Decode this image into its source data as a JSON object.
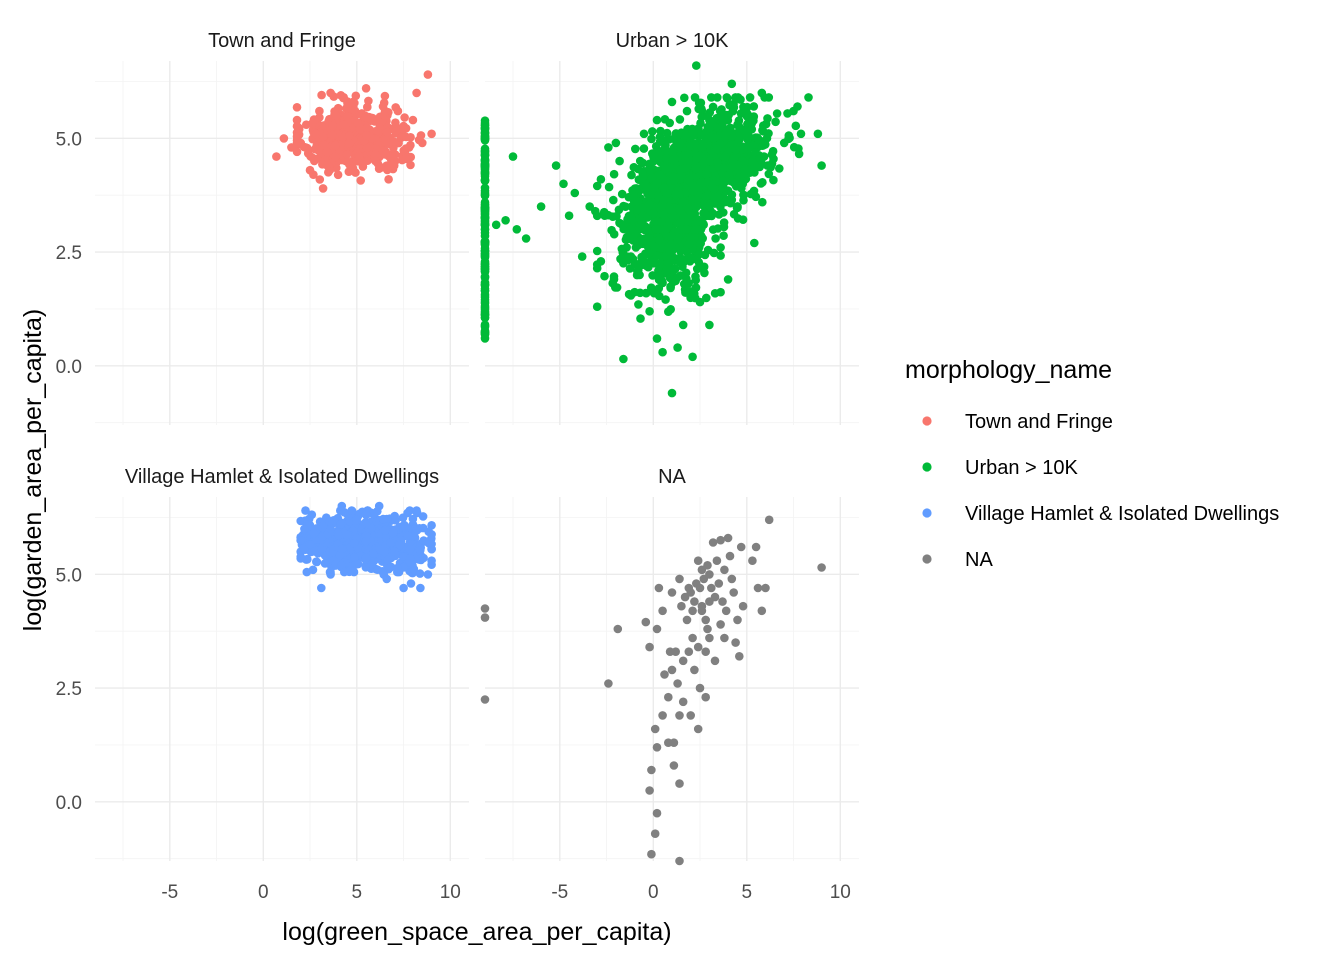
{
  "chart_data": {
    "type": "scatter",
    "title": "",
    "xlabel": "log(green_space_area_per_capita)",
    "ylabel": "log(garden_area_per_capita)",
    "xlim": [
      -9,
      11
    ],
    "ylim": [
      -1.3,
      6.7
    ],
    "x_ticks": [
      -5,
      0,
      5,
      10
    ],
    "x_tick_labels": [
      "-5",
      "0",
      "5",
      "10"
    ],
    "y_ticks": [
      0,
      2.5,
      5
    ],
    "y_tick_labels": [
      "0.0",
      "2.5",
      "5.0"
    ],
    "grid": true,
    "legend": {
      "title": "morphology_name",
      "placement": "right",
      "entries": [
        {
          "label": "Town and Fringe",
          "color": "#F8766D"
        },
        {
          "label": "Urban > 10K",
          "color": "#00BA38"
        },
        {
          "label": "Village Hamlet & Isolated Dwellings",
          "color": "#619CFF"
        },
        {
          "label": "NA",
          "color": "#808080"
        }
      ]
    },
    "facets": [
      {
        "name": "Town and Fringe",
        "color": "#F8766D",
        "points": [
          [
            0.7,
            4.6
          ],
          [
            1.5,
            4.8
          ],
          [
            1.1,
            5.0
          ],
          [
            2.5,
            4.3
          ],
          [
            2.3,
            5.3
          ],
          [
            3.0,
            5.6
          ],
          [
            3.6,
            6.0
          ],
          [
            3.2,
            3.9
          ],
          [
            4.0,
            4.2
          ],
          [
            4.8,
            5.8
          ],
          [
            5.5,
            6.1
          ],
          [
            6.0,
            4.5
          ],
          [
            5.8,
            5.4
          ],
          [
            6.4,
            5.7
          ],
          [
            7.0,
            4.4
          ],
          [
            7.5,
            5.2
          ],
          [
            8.2,
            6.0
          ],
          [
            8.8,
            6.4
          ],
          [
            9.0,
            5.1
          ],
          [
            8.5,
            4.9
          ],
          [
            7.8,
            4.8
          ],
          [
            6.7,
            4.1
          ],
          [
            5.0,
            4.5
          ],
          [
            4.3,
            5.3
          ],
          [
            3.4,
            4.7
          ],
          [
            2.8,
            5.1
          ],
          [
            2.0,
            4.9
          ],
          [
            1.8,
            5.4
          ],
          [
            3.9,
            5.5
          ],
          [
            4.6,
            4.9
          ],
          [
            7.2,
            5.6
          ],
          [
            8.0,
            5.4
          ]
        ],
        "clusters": [
          {
            "x_mean": 4.3,
            "x_sd": 1.1,
            "y_mean": 5.0,
            "y_sd": 0.35,
            "n": 380,
            "x_range": [
              1.8,
              7.5
            ],
            "y_range": [
              4.05,
              5.95
            ]
          },
          {
            "x_mean": 6.5,
            "x_sd": 1.1,
            "y_mean": 5.05,
            "y_sd": 0.4,
            "n": 110,
            "x_range": [
              4.5,
              9.0
            ],
            "y_range": [
              4.1,
              6.1
            ]
          }
        ]
      },
      {
        "name": "Urban > 10K",
        "color": "#00BA38",
        "points": [
          [
            -7.9,
            3.2
          ],
          [
            -7.3,
            3.0
          ],
          [
            -6.8,
            2.8
          ],
          [
            -7.5,
            4.6
          ],
          [
            -8.4,
            3.1
          ],
          [
            -6.0,
            3.5
          ],
          [
            -5.2,
            4.4
          ],
          [
            -4.8,
            4.0
          ],
          [
            -4.2,
            3.8
          ],
          [
            -3.4,
            3.5
          ],
          [
            -3.1,
            3.4
          ],
          [
            -2.8,
            4.1
          ],
          [
            -2.4,
            4.8
          ],
          [
            -2.6,
            3.3
          ],
          [
            -2.1,
            1.9
          ],
          [
            -1.8,
            4.5
          ],
          [
            -1.4,
            2.4
          ],
          [
            -1.2,
            3.0
          ],
          [
            -0.8,
            2.1
          ],
          [
            -1.6,
            0.15
          ],
          [
            -0.2,
            1.2
          ],
          [
            0.2,
            0.6
          ],
          [
            0.5,
            0.3
          ],
          [
            1.0,
            -0.6
          ],
          [
            1.6,
            0.9
          ],
          [
            2.5,
            1.4
          ],
          [
            3.0,
            0.9
          ],
          [
            4.0,
            1.9
          ],
          [
            3.6,
            2.6
          ],
          [
            5.4,
            2.7
          ],
          [
            6.1,
            4.4
          ],
          [
            7.0,
            4.9
          ],
          [
            7.5,
            5.6
          ],
          [
            8.3,
            5.9
          ],
          [
            8.8,
            5.1
          ],
          [
            9.0,
            4.4
          ],
          [
            7.9,
            5.1
          ],
          [
            5.8,
            6.0
          ],
          [
            4.2,
            6.2
          ],
          [
            2.3,
            6.6
          ],
          [
            1.8,
            5.6
          ],
          [
            1.0,
            5.8
          ],
          [
            0.2,
            5.4
          ],
          [
            -0.5,
            5.1
          ],
          [
            3.1,
            5.9
          ],
          [
            -0.4,
            1.6
          ],
          [
            2.1,
            0.2
          ],
          [
            1.3,
            0.4
          ],
          [
            -0.9,
            3.9
          ],
          [
            -3.8,
            2.4
          ],
          [
            -4.5,
            3.3
          ],
          [
            -2.0,
            4.9
          ]
        ],
        "clusters": [
          {
            "x_mean": 2.8,
            "x_sd": 1.7,
            "y_mean": 4.4,
            "y_sd": 0.55,
            "n": 900,
            "x_range": [
              -2.5,
              8.0
            ],
            "y_range": [
              2.6,
              5.9
            ],
            "slope": 0.15
          },
          {
            "x_mean": 0.8,
            "x_sd": 1.5,
            "y_mean": 3.3,
            "y_sd": 0.7,
            "n": 550,
            "x_range": [
              -3.0,
              4.8
            ],
            "y_range": [
              1.3,
              5.1
            ],
            "slope": 0.12
          },
          {
            "x_mean": 1.0,
            "x_sd": 1.2,
            "y_mean": 2.2,
            "y_sd": 0.5,
            "n": 90,
            "x_range": [
              -1.2,
              3.6
            ],
            "y_range": [
              0.9,
              3.0
            ]
          }
        ],
        "edge_column": {
          "x": -9.0,
          "y_range": [
            0.6,
            5.4
          ],
          "n": 150
        }
      },
      {
        "name": "Village Hamlet & Isolated Dwellings",
        "color": "#619CFF",
        "points": [
          [
            3.1,
            4.7
          ],
          [
            3.6,
            5.0
          ],
          [
            2.7,
            5.9
          ],
          [
            4.2,
            6.5
          ],
          [
            5.0,
            6.2
          ],
          [
            7.5,
            4.7
          ],
          [
            7.9,
            4.8
          ],
          [
            8.4,
            4.7
          ],
          [
            6.6,
            4.9
          ],
          [
            8.8,
            5.0
          ],
          [
            9.0,
            5.3
          ],
          [
            8.2,
            6.4
          ],
          [
            6.2,
            6.5
          ],
          [
            2.2,
            6.0
          ]
        ],
        "clusters": [
          {
            "x_mean": 4.7,
            "x_sd": 1.3,
            "y_mean": 5.75,
            "y_sd": 0.28,
            "n": 520,
            "x_range": [
              2.0,
              8.0
            ],
            "y_range": [
              5.05,
              6.4
            ]
          },
          {
            "x_mean": 7.3,
            "x_sd": 1.1,
            "y_mean": 5.65,
            "y_sd": 0.3,
            "n": 170,
            "x_range": [
              5.5,
              9.0
            ],
            "y_range": [
              4.95,
              6.35
            ]
          }
        ]
      },
      {
        "name": "NA",
        "color": "#808080",
        "points": [
          [
            -9.0,
            4.25
          ],
          [
            -9.0,
            4.05
          ],
          [
            -9.0,
            2.25
          ],
          [
            -2.4,
            2.6
          ],
          [
            -1.9,
            3.8
          ],
          [
            -0.4,
            3.95
          ],
          [
            0.2,
            3.8
          ],
          [
            -0.2,
            3.4
          ],
          [
            0.3,
            4.7
          ],
          [
            1.0,
            4.6
          ],
          [
            1.4,
            4.9
          ],
          [
            2.0,
            4.6
          ],
          [
            2.2,
            4.4
          ],
          [
            2.5,
            4.7
          ],
          [
            2.6,
            4.2
          ],
          [
            2.4,
            5.3
          ],
          [
            3.0,
            5.0
          ],
          [
            3.3,
            4.5
          ],
          [
            3.5,
            4.8
          ],
          [
            3.8,
            5.1
          ],
          [
            3.2,
            5.7
          ],
          [
            3.6,
            5.75
          ],
          [
            4.0,
            5.8
          ],
          [
            4.1,
            5.4
          ],
          [
            4.7,
            5.6
          ],
          [
            5.3,
            5.3
          ],
          [
            5.6,
            4.7
          ],
          [
            6.0,
            4.7
          ],
          [
            6.2,
            6.2
          ],
          [
            9.0,
            5.15
          ],
          [
            1.2,
            3.3
          ],
          [
            1.6,
            3.1
          ],
          [
            1.9,
            3.3
          ],
          [
            2.2,
            2.9
          ],
          [
            2.5,
            2.5
          ],
          [
            2.8,
            2.3
          ],
          [
            1.3,
            2.6
          ],
          [
            1.6,
            2.2
          ],
          [
            2.0,
            1.9
          ],
          [
            2.4,
            1.6
          ],
          [
            0.8,
            2.3
          ],
          [
            0.5,
            1.9
          ],
          [
            0.1,
            1.6
          ],
          [
            0.2,
            1.2
          ],
          [
            -0.1,
            0.7
          ],
          [
            0.8,
            1.3
          ],
          [
            1.1,
            0.8
          ],
          [
            1.4,
            0.4
          ],
          [
            -0.2,
            0.25
          ],
          [
            0.2,
            -0.25
          ],
          [
            0.1,
            -0.7
          ],
          [
            -0.1,
            -1.15
          ],
          [
            1.4,
            -1.3
          ],
          [
            3.0,
            3.6
          ],
          [
            3.3,
            3.1
          ],
          [
            3.8,
            3.6
          ],
          [
            4.4,
            3.5
          ],
          [
            4.6,
            3.2
          ],
          [
            4.8,
            4.3
          ],
          [
            4.5,
            4.0
          ],
          [
            5.5,
            5.6
          ],
          [
            5.8,
            4.2
          ],
          [
            3.9,
            4.2
          ],
          [
            3.6,
            3.9
          ],
          [
            2.9,
            3.8
          ],
          [
            2.1,
            3.6
          ],
          [
            1.8,
            4.0
          ],
          [
            1.5,
            4.3
          ],
          [
            2.7,
            4.9
          ],
          [
            3.0,
            4.4
          ],
          [
            2.3,
            4.8
          ],
          [
            1.9,
            4.7
          ],
          [
            2.6,
            5.1
          ],
          [
            2.9,
            5.2
          ],
          [
            3.4,
            5.3
          ],
          [
            4.2,
            4.9
          ],
          [
            3.7,
            4.4
          ],
          [
            4.3,
            4.6
          ],
          [
            2.6,
            4.3
          ],
          [
            1.7,
            4.5
          ],
          [
            2.1,
            4.2
          ],
          [
            2.8,
            4.0
          ],
          [
            3.1,
            4.7
          ],
          [
            0.5,
            4.2
          ],
          [
            0.9,
            3.3
          ],
          [
            2.4,
            3.4
          ],
          [
            2.8,
            3.3
          ],
          [
            1.1,
            1.3
          ],
          [
            1.4,
            1.9
          ],
          [
            0.6,
            2.8
          ],
          [
            1.0,
            2.9
          ]
        ]
      }
    ]
  }
}
